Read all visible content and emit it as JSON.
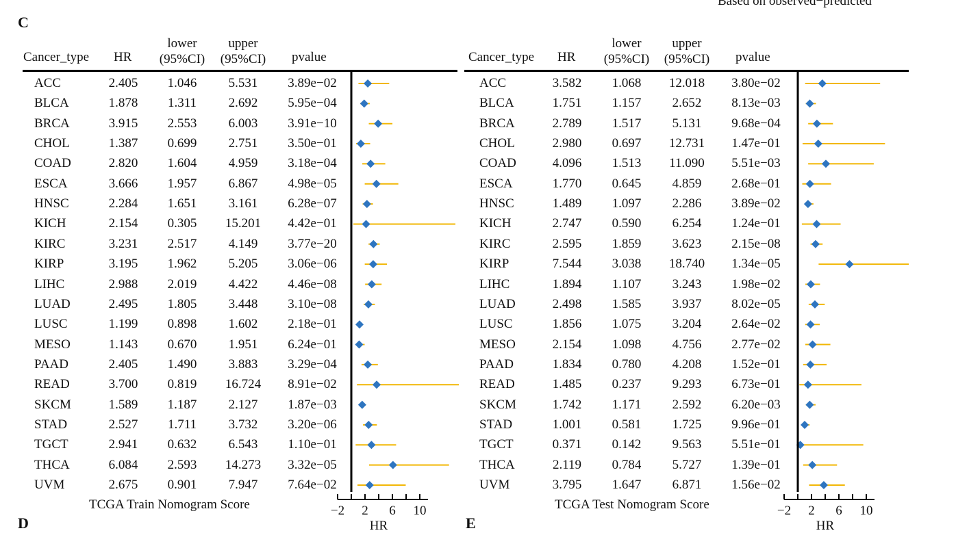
{
  "top_note": "Based on observed−predicted",
  "panel_letters": {
    "c": "C",
    "d": "D",
    "e": "E"
  },
  "columns": {
    "cancer_type": "Cancer_type",
    "hr": "HR",
    "lower_1": "lower",
    "lower_2": "(95%CI)",
    "upper_1": "upper",
    "upper_2": "(95%CI)",
    "pvalue": "pvalue"
  },
  "colors": {
    "marker": "#2E75C0",
    "ci_line": "#F2B705",
    "axis": "#000000"
  },
  "chart_data": [
    {
      "type": "forest",
      "title": "",
      "xlabel": "HR",
      "caption": "TCGA Train Nomogram Score",
      "xticks": [
        -2,
        2,
        6,
        10
      ],
      "xlim": [
        -2,
        15
      ],
      "reference_line": 0,
      "rows": [
        {
          "cancer_type": "ACC",
          "hr": 2.405,
          "lower": 1.046,
          "upper": 5.531,
          "pvalue": "3.89e−02"
        },
        {
          "cancer_type": "BLCA",
          "hr": 1.878,
          "lower": 1.311,
          "upper": 2.692,
          "pvalue": "5.95e−04"
        },
        {
          "cancer_type": "BRCA",
          "hr": 3.915,
          "lower": 2.553,
          "upper": 6.003,
          "pvalue": "3.91e−10"
        },
        {
          "cancer_type": "CHOL",
          "hr": 1.387,
          "lower": 0.699,
          "upper": 2.751,
          "pvalue": "3.50e−01"
        },
        {
          "cancer_type": "COAD",
          "hr": 2.82,
          "lower": 1.604,
          "upper": 4.959,
          "pvalue": "3.18e−04"
        },
        {
          "cancer_type": "ESCA",
          "hr": 3.666,
          "lower": 1.957,
          "upper": 6.867,
          "pvalue": "4.98e−05"
        },
        {
          "cancer_type": "HNSC",
          "hr": 2.284,
          "lower": 1.651,
          "upper": 3.161,
          "pvalue": "6.28e−07"
        },
        {
          "cancer_type": "KICH",
          "hr": 2.154,
          "lower": 0.305,
          "upper": 15.201,
          "pvalue": "4.42e−01"
        },
        {
          "cancer_type": "KIRC",
          "hr": 3.231,
          "lower": 2.517,
          "upper": 4.149,
          "pvalue": "3.77e−20"
        },
        {
          "cancer_type": "KIRP",
          "hr": 3.195,
          "lower": 1.962,
          "upper": 5.205,
          "pvalue": "3.06e−06"
        },
        {
          "cancer_type": "LIHC",
          "hr": 2.988,
          "lower": 2.019,
          "upper": 4.422,
          "pvalue": "4.46e−08"
        },
        {
          "cancer_type": "LUAD",
          "hr": 2.495,
          "lower": 1.805,
          "upper": 3.448,
          "pvalue": "3.10e−08"
        },
        {
          "cancer_type": "LUSC",
          "hr": 1.199,
          "lower": 0.898,
          "upper": 1.602,
          "pvalue": "2.18e−01"
        },
        {
          "cancer_type": "MESO",
          "hr": 1.143,
          "lower": 0.67,
          "upper": 1.951,
          "pvalue": "6.24e−01"
        },
        {
          "cancer_type": "PAAD",
          "hr": 2.405,
          "lower": 1.49,
          "upper": 3.883,
          "pvalue": "3.29e−04"
        },
        {
          "cancer_type": "READ",
          "hr": 3.7,
          "lower": 0.819,
          "upper": 16.724,
          "pvalue": "8.91e−02"
        },
        {
          "cancer_type": "SKCM",
          "hr": 1.589,
          "lower": 1.187,
          "upper": 2.127,
          "pvalue": "1.87e−03"
        },
        {
          "cancer_type": "STAD",
          "hr": 2.527,
          "lower": 1.711,
          "upper": 3.732,
          "pvalue": "3.20e−06"
        },
        {
          "cancer_type": "TGCT",
          "hr": 2.941,
          "lower": 0.632,
          "upper": 6.543,
          "pvalue": "1.10e−01"
        },
        {
          "cancer_type": "THCA",
          "hr": 6.084,
          "lower": 2.593,
          "upper": 14.273,
          "pvalue": "3.32e−05"
        },
        {
          "cancer_type": "UVM",
          "hr": 2.675,
          "lower": 0.901,
          "upper": 7.947,
          "pvalue": "7.64e−02"
        }
      ]
    },
    {
      "type": "forest",
      "title": "",
      "xlabel": "HR",
      "caption": "TCGA Test Nomogram Score",
      "xticks": [
        -2,
        2,
        6,
        10
      ],
      "xlim": [
        -2,
        15
      ],
      "reference_line": 0,
      "rows": [
        {
          "cancer_type": "ACC",
          "hr": 3.582,
          "lower": 1.068,
          "upper": 12.018,
          "pvalue": "3.80e−02"
        },
        {
          "cancer_type": "BLCA",
          "hr": 1.751,
          "lower": 1.157,
          "upper": 2.652,
          "pvalue": "8.13e−03"
        },
        {
          "cancer_type": "BRCA",
          "hr": 2.789,
          "lower": 1.517,
          "upper": 5.131,
          "pvalue": "9.68e−04"
        },
        {
          "cancer_type": "CHOL",
          "hr": 2.98,
          "lower": 0.697,
          "upper": 12.731,
          "pvalue": "1.47e−01"
        },
        {
          "cancer_type": "COAD",
          "hr": 4.096,
          "lower": 1.513,
          "upper": 11.09,
          "pvalue": "5.51e−03"
        },
        {
          "cancer_type": "ESCA",
          "hr": 1.77,
          "lower": 0.645,
          "upper": 4.859,
          "pvalue": "2.68e−01"
        },
        {
          "cancer_type": "HNSC",
          "hr": 1.489,
          "lower": 1.097,
          "upper": 2.286,
          "pvalue": "3.89e−02"
        },
        {
          "cancer_type": "KICH",
          "hr": 2.747,
          "lower": 0.59,
          "upper": 6.254,
          "pvalue": "1.24e−01"
        },
        {
          "cancer_type": "KIRC",
          "hr": 2.595,
          "lower": 1.859,
          "upper": 3.623,
          "pvalue": "2.15e−08"
        },
        {
          "cancer_type": "KIRP",
          "hr": 7.544,
          "lower": 3.038,
          "upper": 18.74,
          "pvalue": "1.34e−05"
        },
        {
          "cancer_type": "LIHC",
          "hr": 1.894,
          "lower": 1.107,
          "upper": 3.243,
          "pvalue": "1.98e−02"
        },
        {
          "cancer_type": "LUAD",
          "hr": 2.498,
          "lower": 1.585,
          "upper": 3.937,
          "pvalue": "8.02e−05"
        },
        {
          "cancer_type": "LUSC",
          "hr": 1.856,
          "lower": 1.075,
          "upper": 3.204,
          "pvalue": "2.64e−02"
        },
        {
          "cancer_type": "MESO",
          "hr": 2.154,
          "lower": 1.098,
          "upper": 4.756,
          "pvalue": "2.77e−02"
        },
        {
          "cancer_type": "PAAD",
          "hr": 1.834,
          "lower": 0.78,
          "upper": 4.208,
          "pvalue": "1.52e−01"
        },
        {
          "cancer_type": "READ",
          "hr": 1.485,
          "lower": 0.237,
          "upper": 9.293,
          "pvalue": "6.73e−01"
        },
        {
          "cancer_type": "SKCM",
          "hr": 1.742,
          "lower": 1.171,
          "upper": 2.592,
          "pvalue": "6.20e−03"
        },
        {
          "cancer_type": "STAD",
          "hr": 1.001,
          "lower": 0.581,
          "upper": 1.725,
          "pvalue": "9.96e−01"
        },
        {
          "cancer_type": "TGCT",
          "hr": 0.371,
          "lower": 0.142,
          "upper": 9.563,
          "pvalue": "5.51e−01"
        },
        {
          "cancer_type": "THCA",
          "hr": 2.119,
          "lower": 0.784,
          "upper": 5.727,
          "pvalue": "1.39e−01"
        },
        {
          "cancer_type": "UVM",
          "hr": 3.795,
          "lower": 1.647,
          "upper": 6.871,
          "pvalue": "1.56e−02"
        }
      ]
    }
  ]
}
